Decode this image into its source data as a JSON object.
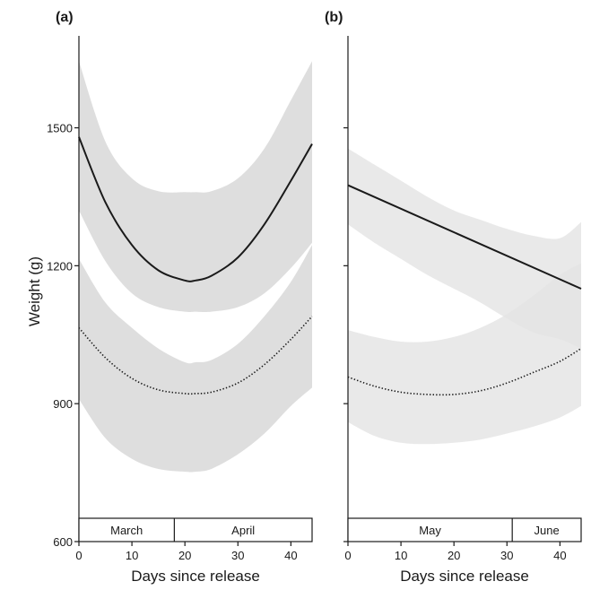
{
  "chart_data": [
    {
      "type": "line",
      "panel_label": "(a)",
      "xlabel": "Days since release",
      "ylabel": "Weight (g)",
      "xlim": [
        0,
        44
      ],
      "ylim": [
        600,
        1700
      ],
      "xticks": [
        0,
        10,
        20,
        30,
        40
      ],
      "yticks": [
        600,
        900,
        1200,
        1500
      ],
      "months": [
        {
          "label": "March",
          "start": 0,
          "end": 18
        },
        {
          "label": "April",
          "start": 18,
          "end": 44
        }
      ],
      "series": [
        {
          "style": "solid",
          "x": [
            0,
            5,
            10,
            15,
            20,
            22,
            25,
            30,
            35,
            40,
            44
          ],
          "y": [
            1480,
            1338,
            1245,
            1190,
            1168,
            1168,
            1178,
            1218,
            1290,
            1385,
            1465
          ],
          "band_lower": [
            1320,
            1210,
            1140,
            1110,
            1100,
            1100,
            1100,
            1110,
            1140,
            1195,
            1250
          ],
          "band_upper": [
            1645,
            1470,
            1390,
            1362,
            1360,
            1360,
            1362,
            1390,
            1455,
            1560,
            1645
          ]
        },
        {
          "style": "dotted",
          "x": [
            0,
            5,
            10,
            15,
            20,
            22,
            25,
            30,
            35,
            40,
            44
          ],
          "y": [
            1065,
            1000,
            955,
            930,
            922,
            922,
            925,
            945,
            985,
            1040,
            1090
          ],
          "band_lower": [
            910,
            825,
            780,
            758,
            752,
            752,
            758,
            790,
            835,
            895,
            935
          ],
          "band_upper": [
            1215,
            1120,
            1065,
            1020,
            990,
            990,
            995,
            1030,
            1090,
            1165,
            1245
          ]
        }
      ]
    },
    {
      "type": "line",
      "panel_label": "(b)",
      "xlabel": "Days since release",
      "xlim": [
        0,
        44
      ],
      "ylim": [
        600,
        1700
      ],
      "xticks": [
        0,
        10,
        20,
        30,
        40
      ],
      "yticks": [
        600,
        900,
        1200,
        1500
      ],
      "months": [
        {
          "label": "May",
          "start": 0,
          "end": 31
        },
        {
          "label": "June",
          "start": 31,
          "end": 44
        }
      ],
      "series": [
        {
          "style": "solid",
          "x": [
            0,
            44
          ],
          "y": [
            1375,
            1150
          ],
          "band_x": [
            0,
            5,
            10,
            15,
            20,
            25,
            30,
            35,
            40,
            44
          ],
          "band_lower": [
            1290,
            1250,
            1215,
            1180,
            1150,
            1120,
            1085,
            1055,
            1040,
            1020
          ],
          "band_upper": [
            1455,
            1420,
            1385,
            1350,
            1320,
            1300,
            1280,
            1265,
            1260,
            1295
          ]
        },
        {
          "style": "dotted",
          "x": [
            0,
            5,
            10,
            15,
            20,
            25,
            30,
            35,
            40,
            44
          ],
          "y": [
            958,
            938,
            925,
            920,
            920,
            928,
            945,
            968,
            992,
            1020
          ],
          "band_lower": [
            860,
            830,
            815,
            812,
            815,
            822,
            835,
            850,
            870,
            895
          ],
          "band_upper": [
            1060,
            1045,
            1035,
            1035,
            1045,
            1065,
            1095,
            1135,
            1180,
            1205
          ]
        }
      ]
    }
  ]
}
